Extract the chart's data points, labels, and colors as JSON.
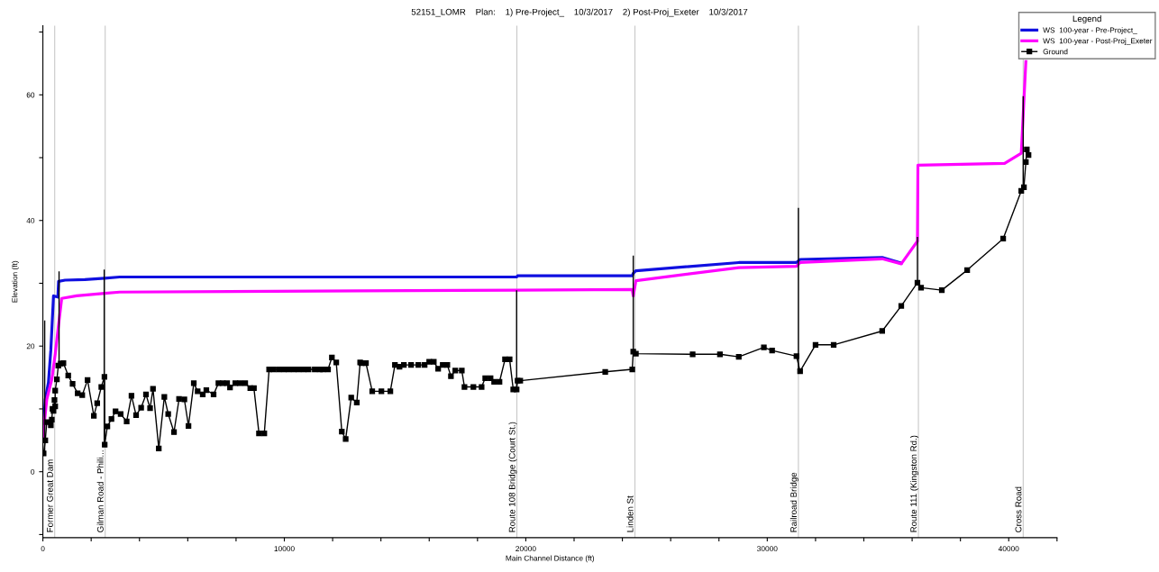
{
  "chart_data": {
    "type": "line",
    "title": "52151_LOMR    Plan:    1) Pre-Project_    10/3/2017    2) Post-Proj_Exeter    10/3/2017",
    "xlabel": "Main Channel Distance (ft)",
    "ylabel": "Elevation (ft)",
    "legend_title": "Legend",
    "legend": "top right",
    "grid": false,
    "xlim": [
      0,
      42000
    ],
    "ylim": [
      -10.5,
      71
    ],
    "xticks": [
      0,
      {
        "value": 2000,
        "label": null
      },
      {
        "value": 4000,
        "label": null
      },
      {
        "value": 6000,
        "label": null
      },
      {
        "value": 8000,
        "label": null
      },
      10000,
      {
        "value": 12000,
        "label": null
      },
      {
        "value": 14000,
        "label": null
      },
      {
        "value": 16000,
        "label": null
      },
      {
        "value": 18000,
        "label": null
      },
      20000,
      {
        "value": 22000,
        "label": null
      },
      {
        "value": 24000,
        "label": null
      },
      {
        "value": 26000,
        "label": null
      },
      {
        "value": 28000,
        "label": null
      },
      30000,
      {
        "value": 32000,
        "label": null
      },
      {
        "value": 34000,
        "label": null
      },
      {
        "value": 36000,
        "label": null
      },
      {
        "value": 38000,
        "label": null
      },
      40000,
      {
        "value": 42000,
        "label": null
      }
    ],
    "yticks": [
      {
        "value": -10,
        "label": null
      },
      0,
      {
        "value": 10,
        "label": null
      },
      20,
      {
        "value": 30,
        "label": null
      },
      40,
      {
        "value": 50,
        "label": null
      },
      60,
      {
        "value": 70,
        "label": null
      }
    ],
    "series": [
      {
        "name": "WS  100-year - Pre-Project_",
        "color": "#1010e0",
        "marker": "none",
        "x": [
          0,
          100,
          230,
          330,
          440,
          620,
          650,
          920,
          1740,
          2560,
          3180,
          13180,
          19620,
          19660,
          24410,
          24450,
          24560,
          28820,
          31210,
          31360,
          34760,
          35550
        ],
        "values": [
          5.6,
          11.5,
          14.2,
          19.4,
          28.0,
          27.8,
          30.3,
          30.5,
          30.6,
          30.8,
          31.0,
          31.0,
          31.0,
          31.2,
          31.2,
          31.6,
          32.0,
          33.3,
          33.3,
          33.8,
          34.1,
          33.2
        ]
      },
      {
        "name": "WS  100-year - Post-Proj_Exeter",
        "color": "#ff00ff",
        "marker": "none",
        "x": [
          0,
          160,
          370,
          510,
          640,
          780,
          1400,
          2560,
          3180,
          13180,
          19620,
          24410,
          24450,
          24560,
          28820,
          31210,
          31360,
          34760,
          35550,
          36220,
          36240,
          39830,
          40520,
          40710
        ],
        "values": [
          5.6,
          11.5,
          14.7,
          18.7,
          23.1,
          27.6,
          28.0,
          28.4,
          28.6,
          28.8,
          28.9,
          29.0,
          28.0,
          30.4,
          32.5,
          32.7,
          33.3,
          33.9,
          33.1,
          36.7,
          48.8,
          49.1,
          50.7,
          65.3
        ]
      },
      {
        "name": "Ground",
        "color": "#000000",
        "marker": "square",
        "x": [
          30,
          100,
          160,
          330,
          370,
          400,
          440,
          480,
          510,
          510,
          580,
          640,
          740,
          850,
          1050,
          1230,
          1440,
          1630,
          1850,
          2110,
          2250,
          2420,
          2550,
          2560,
          2670,
          2840,
          3010,
          3220,
          3470,
          3670,
          3860,
          4070,
          4270,
          4440,
          4560,
          4800,
          5030,
          5190,
          5430,
          5640,
          5860,
          6030,
          6250,
          6410,
          6620,
          6770,
          7070,
          7270,
          7450,
          7630,
          7750,
          7970,
          8160,
          8380,
          8590,
          8740,
          8950,
          9170,
          9370,
          9550,
          9770,
          9980,
          10180,
          10390,
          10590,
          10800,
          11000,
          11260,
          11470,
          11600,
          11810,
          11970,
          12150,
          12380,
          12540,
          12770,
          13000,
          13140,
          13195,
          13380,
          13640,
          14020,
          14390,
          14580,
          14770,
          14950,
          15250,
          15550,
          15810,
          16000,
          16190,
          16370,
          16560,
          16750,
          16900,
          17080,
          17350,
          17460,
          17830,
          18170,
          18320,
          18540,
          18690,
          18910,
          19140,
          19330,
          19480,
          19620,
          19660,
          19770,
          23290,
          24410,
          24450,
          24560,
          26910,
          28040,
          28820,
          29860,
          30200,
          31210,
          31360,
          32000,
          32750,
          34760,
          35550,
          36220,
          36370,
          37230,
          38280,
          39770,
          40520,
          40630,
          40710,
          40750,
          40820
        ],
        "values": [
          2.9,
          5.0,
          7.9,
          7.4,
          8.3,
          10.0,
          9.7,
          11.4,
          10.4,
          12.9,
          14.7,
          16.9,
          17.2,
          17.3,
          15.3,
          14.0,
          12.5,
          12.2,
          14.6,
          8.9,
          10.9,
          13.5,
          15.1,
          4.3,
          7.2,
          8.4,
          9.6,
          9.2,
          8.0,
          12.1,
          9.0,
          10.2,
          12.3,
          10.1,
          13.2,
          3.7,
          11.9,
          9.2,
          6.3,
          11.6,
          11.5,
          7.3,
          14.1,
          12.8,
          12.3,
          13.0,
          12.3,
          14.1,
          14.1,
          14.1,
          13.4,
          14.1,
          14.1,
          14.1,
          13.3,
          13.3,
          6.1,
          6.1,
          16.3,
          16.3,
          16.3,
          16.3,
          16.3,
          16.3,
          16.3,
          16.3,
          16.3,
          16.3,
          16.3,
          16.3,
          16.3,
          18.2,
          17.4,
          6.4,
          5.2,
          11.8,
          11.0,
          17.4,
          17.3,
          17.3,
          12.8,
          12.8,
          12.8,
          17.0,
          16.7,
          17.0,
          17.0,
          17.0,
          17.0,
          17.5,
          17.5,
          16.4,
          17.0,
          17.0,
          15.2,
          16.1,
          16.1,
          13.5,
          13.5,
          13.5,
          14.9,
          14.9,
          14.3,
          14.3,
          17.9,
          17.9,
          13.1,
          13.1,
          14.5,
          14.5,
          15.9,
          16.3,
          19.1,
          18.8,
          18.7,
          18.7,
          18.3,
          19.8,
          19.3,
          18.4,
          16.0,
          20.2,
          20.2,
          22.4,
          26.4,
          30.1,
          29.3,
          28.9,
          32.1,
          37.1,
          44.7,
          45.3,
          49.3,
          51.3,
          50.4
        ]
      },
      {
        "color": "#000000",
        "marker": "none",
        "x": [
          75,
          75,
          null,
          670,
          670,
          null,
          2540,
          2540,
          null,
          19620,
          19620,
          null,
          24450,
          24450,
          null,
          31290,
          31290,
          null,
          36220,
          36220,
          null,
          40600,
          40600
        ],
        "values": [
          3.0,
          24.0,
          null,
          17.0,
          31.8,
          null,
          4.3,
          32.1,
          null,
          13.1,
          28.8,
          null,
          19.1,
          34.3,
          null,
          16.0,
          41.9,
          null,
          30.1,
          37.3,
          null,
          44.7,
          59.7
        ]
      }
    ],
    "ref_lines": [
      {
        "axis": "x",
        "value": 490,
        "label": "Former Great Dam",
        "color": "#c8c8c8"
      },
      {
        "axis": "x",
        "value": 2580,
        "label": "Gilman Road - Phili...",
        "color": "#c8c8c8"
      },
      {
        "axis": "x",
        "value": 19630,
        "label": "Route 108 Bridge (Court St.)",
        "color": "#c8c8c8"
      },
      {
        "axis": "x",
        "value": 24520,
        "label": "Linden St",
        "color": "#c8c8c8"
      },
      {
        "axis": "x",
        "value": 31290,
        "label": "Railroad Bridge",
        "color": "#c8c8c8"
      },
      {
        "axis": "x",
        "value": 36260,
        "label": "Route 111 (Kingston Rd.)",
        "color": "#c8c8c8"
      },
      {
        "axis": "x",
        "value": 40600,
        "label": "Cross Road",
        "color": "#c8c8c8"
      }
    ]
  }
}
